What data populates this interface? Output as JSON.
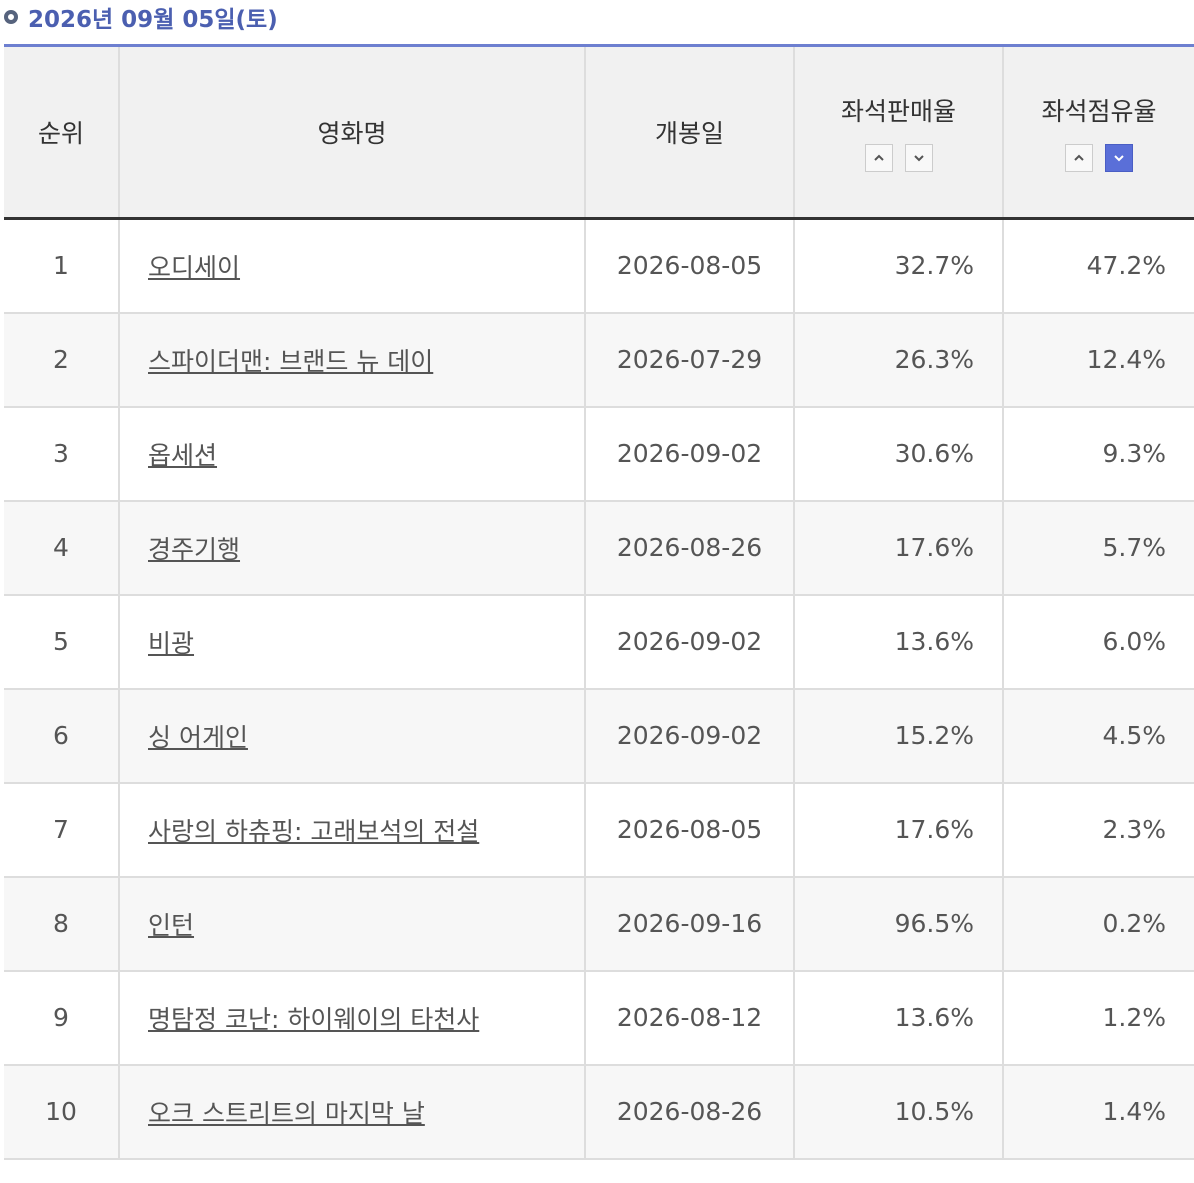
{
  "header": {
    "date": "2026년 09월 05일(토)"
  },
  "table": {
    "columns": [
      "순위",
      "영화명",
      "개봉일",
      "좌석판매율",
      "좌석점유율"
    ],
    "rows": [
      [
        "1",
        "오디세이",
        "2026-08-05",
        "32.7%",
        "47.2%"
      ],
      [
        "2",
        "스파이더맨: 브랜드 뉴 데이",
        "2026-07-29",
        "26.3%",
        "12.4%"
      ],
      [
        "3",
        "옵세션",
        "2026-09-02",
        "30.6%",
        "9.3%"
      ],
      [
        "4",
        "경주기행",
        "2026-08-26",
        "17.6%",
        "5.7%"
      ],
      [
        "5",
        "비광",
        "2026-09-02",
        "13.6%",
        "6.0%"
      ],
      [
        "6",
        "싱 어게인",
        "2026-09-02",
        "15.2%",
        "4.5%"
      ],
      [
        "7",
        "사랑의 하츄핑: 고래보석의 전설",
        "2026-08-05",
        "17.6%",
        "2.3%"
      ],
      [
        "8",
        "인턴",
        "2026-09-16",
        "96.5%",
        "0.2%"
      ],
      [
        "9",
        "명탐정 코난: 하이웨이의 타천사",
        "2026-08-12",
        "13.6%",
        "1.2%"
      ],
      [
        "10",
        "오크 스트리트의 마지막 날",
        "2026-08-26",
        "10.5%",
        "1.4%"
      ]
    ]
  }
}
